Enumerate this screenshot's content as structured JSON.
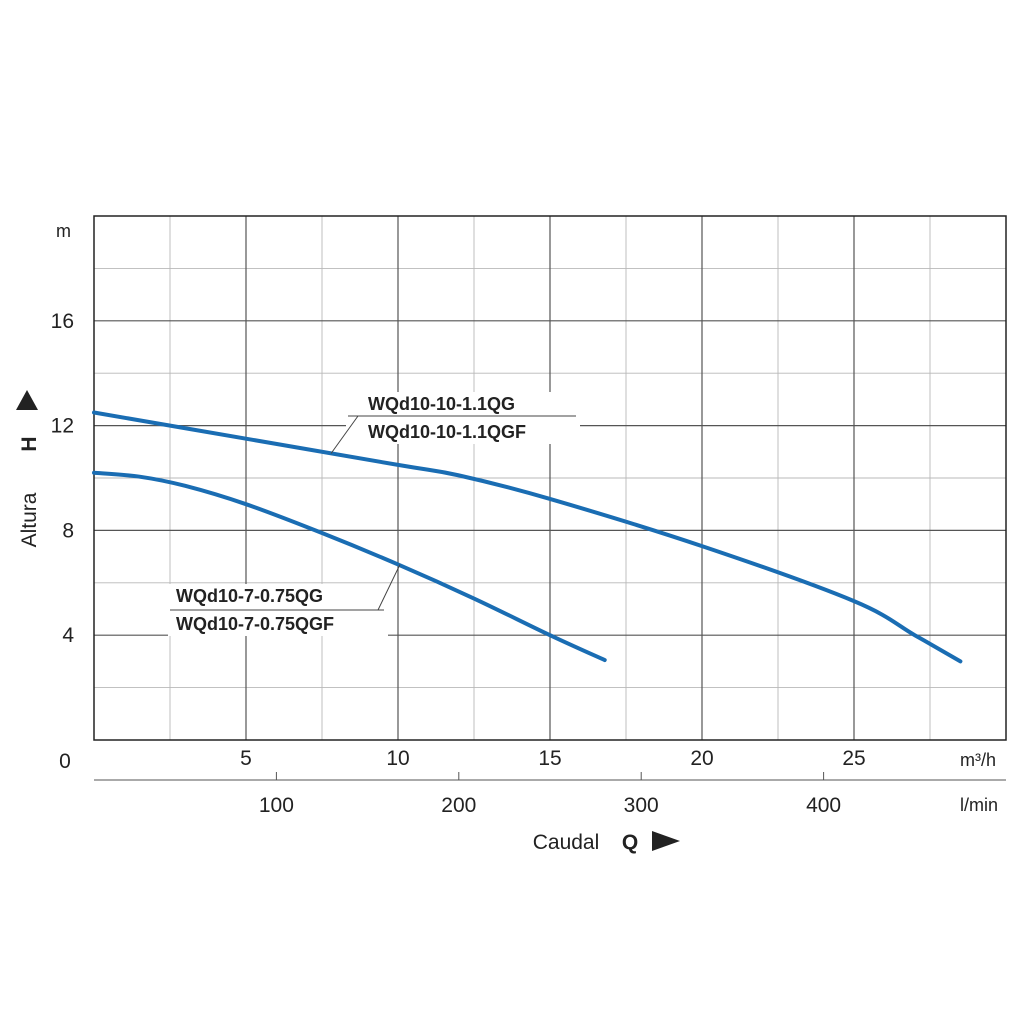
{
  "chart_data": {
    "type": "line",
    "x_axis": {
      "label": "Caudal",
      "symbol": "Q",
      "unit": "m³/h",
      "range": [
        0,
        30
      ],
      "ticks": [
        0,
        5,
        10,
        15,
        20,
        25
      ],
      "tick_labels": [
        "0",
        "5",
        "10",
        "15",
        "20",
        "25"
      ]
    },
    "secondary_x_axis": {
      "unit": "l/min",
      "ticks": [
        100,
        200,
        300,
        400
      ],
      "tick_labels": [
        "100",
        "200",
        "300",
        "400"
      ]
    },
    "y_axis": {
      "label": "Altura",
      "symbol": "H",
      "unit": "m",
      "range": [
        0,
        20
      ],
      "ticks": [
        4,
        8,
        12,
        16
      ],
      "tick_labels": [
        "4",
        "8",
        "12",
        "16"
      ]
    },
    "grid": true,
    "series": [
      {
        "name": "WQd10-10-1.1QG / WQd10-10-1.1QGF",
        "label_lines": [
          "WQd10-10-1.1QG",
          "WQd10-10-1.1QGF"
        ],
        "color": "#1a6db3",
        "points": [
          [
            0,
            12.5
          ],
          [
            5,
            11.5
          ],
          [
            10,
            10.5
          ],
          [
            12,
            10.1
          ],
          [
            15,
            9.2
          ],
          [
            20,
            7.4
          ],
          [
            25,
            5.3
          ],
          [
            27,
            4.0
          ],
          [
            28.5,
            3.0
          ]
        ]
      },
      {
        "name": "WQd10-7-0.75QG / WQd10-7-0.75QGF",
        "label_lines": [
          "WQd10-7-0.75QG",
          "WQd10-7-0.75QGF"
        ],
        "color": "#1a6db3",
        "points": [
          [
            0,
            10.2
          ],
          [
            1.5,
            10.05
          ],
          [
            3,
            9.7
          ],
          [
            5,
            9.0
          ],
          [
            7.5,
            7.9
          ],
          [
            10,
            6.7
          ],
          [
            12.5,
            5.4
          ],
          [
            15,
            4.0
          ],
          [
            16.8,
            3.05
          ]
        ]
      }
    ]
  }
}
